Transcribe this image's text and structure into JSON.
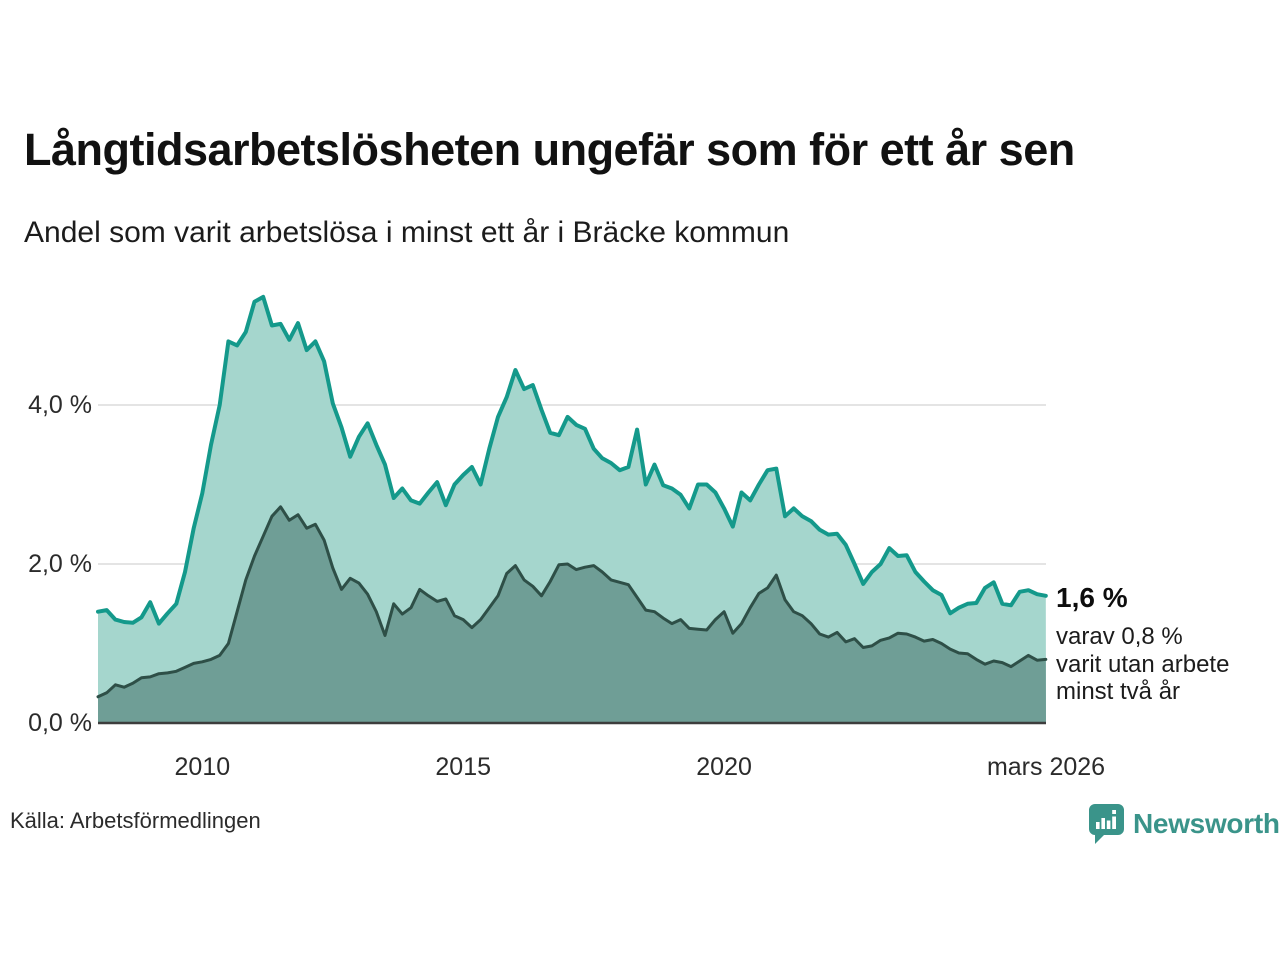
{
  "page": {
    "title": "Långtidsarbetslösheten ungefär som för ett år sen",
    "subtitle": "Andel som varit arbetslösa i minst ett år i Bräcke kommun",
    "source": "Källa: Arbetsförmedlingen",
    "brand": "Newsworthy"
  },
  "colors": {
    "series1_line": "#14998b",
    "series1_fill": "#a5d6cd",
    "series2_line": "#2e4f47",
    "series2_fill": "#6f9e96",
    "gridline": "#dcdcdc",
    "axis_line": "#3d3d3d",
    "brand_teal": "#3a948a",
    "text": "#1c1c1c"
  },
  "chart_data": {
    "type": "area",
    "title": "Långtidsarbetslösheten ungefär som för ett år sen",
    "subtitle": "Andel som varit arbetslösa i minst ett år i Bräcke kommun",
    "xlabel": "",
    "ylabel": "",
    "grid": "horizontal-only",
    "legend_position": "none",
    "xlim": [
      2008.0,
      2026.17
    ],
    "ylim": [
      0,
      5.6
    ],
    "x_start": 2008.0,
    "x_step_years": 0.166667,
    "y_ticks": [
      {
        "value": 0,
        "label": "0,0 %"
      },
      {
        "value": 2,
        "label": "2,0 %"
      },
      {
        "value": 4,
        "label": "4,0 %"
      }
    ],
    "x_ticks": [
      {
        "value": 2010,
        "label": "2010"
      },
      {
        "value": 2015,
        "label": "2015"
      },
      {
        "value": 2020,
        "label": "2020"
      },
      {
        "value": 2026.17,
        "label": "mars 2026"
      }
    ],
    "series": [
      {
        "id": "arbetslosa_minst_ett_ar",
        "end_label": "1,6 %",
        "end_value": 1.6,
        "line_color": "#14998b",
        "fill_color": "#a5d6cd",
        "line_width": 4,
        "values": [
          1.4,
          1.42,
          1.3,
          1.27,
          1.26,
          1.33,
          1.52,
          1.25,
          1.38,
          1.5,
          1.9,
          2.45,
          2.89,
          3.5,
          4.0,
          4.8,
          4.75,
          4.92,
          5.3,
          5.36,
          5.0,
          5.02,
          4.82,
          5.03,
          4.69,
          4.8,
          4.55,
          4.02,
          3.72,
          3.35,
          3.6,
          3.77,
          3.5,
          3.25,
          2.83,
          2.95,
          2.8,
          2.76,
          2.9,
          3.03,
          2.74,
          3.0,
          3.12,
          3.22,
          3.0,
          3.45,
          3.85,
          4.1,
          4.44,
          4.2,
          4.25,
          3.94,
          3.65,
          3.62,
          3.85,
          3.75,
          3.7,
          3.45,
          3.33,
          3.27,
          3.18,
          3.22,
          3.69,
          3.0,
          3.25,
          2.99,
          2.95,
          2.87,
          2.7,
          3.0,
          3.0,
          2.9,
          2.7,
          2.47,
          2.9,
          2.8,
          3.0,
          3.18,
          3.2,
          2.6,
          2.7,
          2.6,
          2.54,
          2.43,
          2.37,
          2.38,
          2.24,
          2.0,
          1.75,
          1.9,
          2.0,
          2.2,
          2.1,
          2.11,
          1.9,
          1.78,
          1.67,
          1.61,
          1.38,
          1.45,
          1.5,
          1.51,
          1.7,
          1.77,
          1.5,
          1.48,
          1.65,
          1.67,
          1.62,
          1.6
        ]
      },
      {
        "id": "varav_utan_arbete_minst_tva_ar",
        "end_value": 0.8,
        "annotation_line1": "varav 0,8 %",
        "annotation_line2": "varit utan arbete",
        "annotation_line3": "minst två år",
        "line_color": "#2e4f47",
        "fill_color": "#6f9e96",
        "line_width": 3,
        "values": [
          0.33,
          0.38,
          0.48,
          0.45,
          0.5,
          0.57,
          0.58,
          0.62,
          0.63,
          0.65,
          0.7,
          0.75,
          0.77,
          0.8,
          0.85,
          1.0,
          1.4,
          1.8,
          2.1,
          2.35,
          2.6,
          2.72,
          2.55,
          2.62,
          2.45,
          2.5,
          2.3,
          1.95,
          1.68,
          1.82,
          1.76,
          1.62,
          1.4,
          1.1,
          1.5,
          1.37,
          1.45,
          1.68,
          1.6,
          1.53,
          1.56,
          1.35,
          1.3,
          1.2,
          1.3,
          1.45,
          1.6,
          1.88,
          1.98,
          1.8,
          1.72,
          1.6,
          1.78,
          1.99,
          2.0,
          1.93,
          1.96,
          1.98,
          1.9,
          1.8,
          1.77,
          1.74,
          1.58,
          1.42,
          1.4,
          1.32,
          1.25,
          1.3,
          1.19,
          1.18,
          1.17,
          1.3,
          1.4,
          1.13,
          1.25,
          1.45,
          1.63,
          1.7,
          1.86,
          1.55,
          1.4,
          1.35,
          1.25,
          1.12,
          1.08,
          1.14,
          1.02,
          1.06,
          0.95,
          0.97,
          1.04,
          1.07,
          1.13,
          1.12,
          1.08,
          1.03,
          1.05,
          1.0,
          0.93,
          0.88,
          0.87,
          0.8,
          0.74,
          0.78,
          0.76,
          0.71,
          0.78,
          0.85,
          0.79,
          0.8
        ]
      }
    ]
  }
}
